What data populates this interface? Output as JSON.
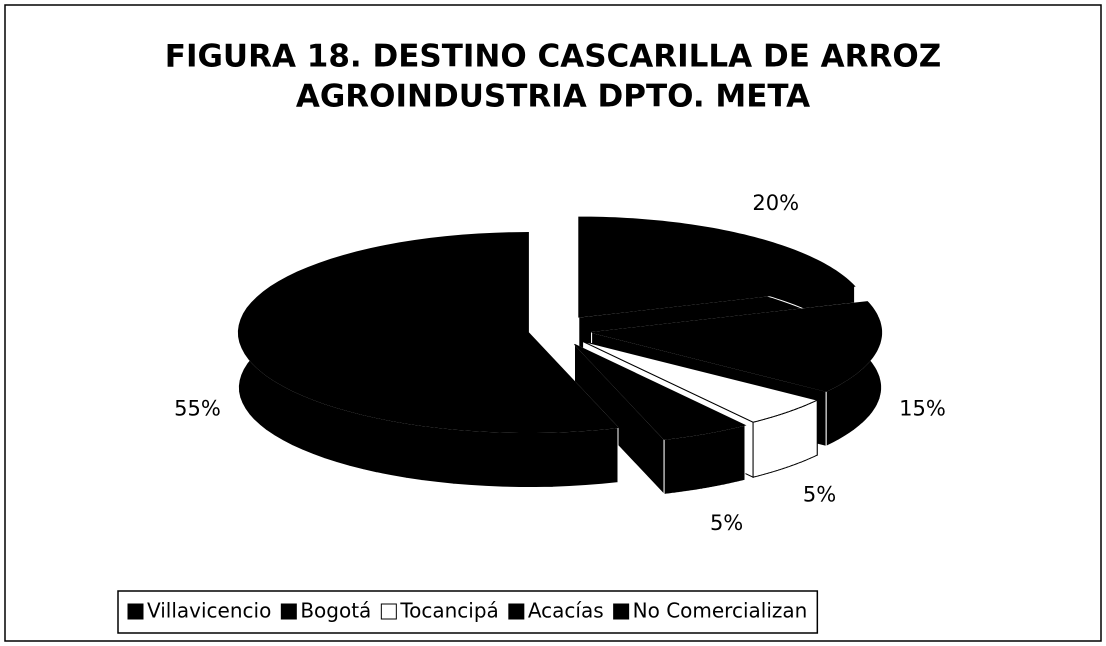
{
  "chart_data": {
    "type": "pie",
    "title": [
      "FIGURA 18. DESTINO CASCARILLA DE ARROZ",
      "AGROINDUSTRIA DPTO. META"
    ],
    "categories": [
      "Villavicencio",
      "Bogotá",
      "Tocancipá",
      "Acacías",
      "No Comercializan"
    ],
    "values": [
      20,
      15,
      5,
      5,
      55
    ],
    "value_labels": [
      "20%",
      "15%",
      "5%",
      "5%",
      "55%"
    ],
    "colors": [
      "#000000",
      "#000000",
      "#ffffff",
      "#000000",
      "#000000"
    ],
    "legend": "bottom"
  }
}
